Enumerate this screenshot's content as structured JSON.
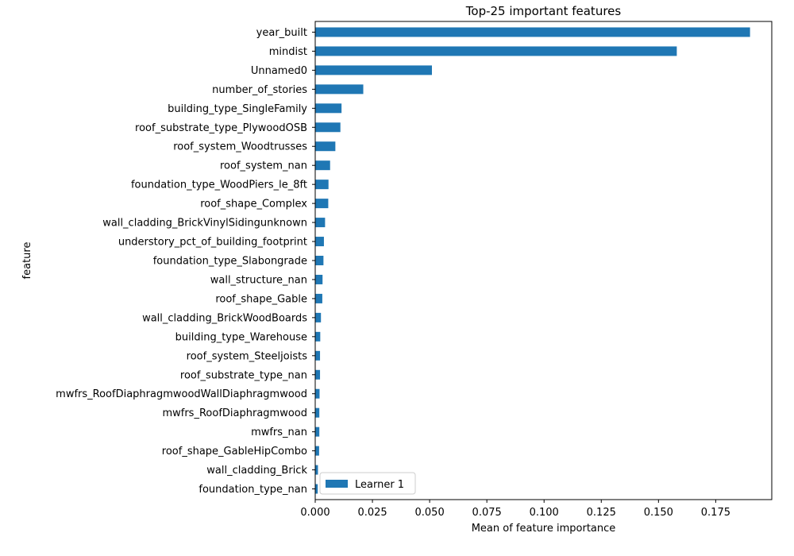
{
  "chart_data": {
    "type": "bar",
    "orientation": "horizontal",
    "title": "Top-25 important features",
    "xlabel": "Mean of feature importance",
    "ylabel": "feature",
    "xlim": [
      0,
      0.1995
    ],
    "xticks": [
      "0.000",
      "0.025",
      "0.050",
      "0.075",
      "0.100",
      "0.125",
      "0.150",
      "0.175"
    ],
    "xtick_values": [
      0,
      0.025,
      0.05,
      0.075,
      0.1,
      0.125,
      0.15,
      0.175
    ],
    "grid": false,
    "legend_position": "bottom-left",
    "bar_color": "#1f77b4",
    "categories": [
      "year_built",
      "mindist",
      "Unnamed0",
      "number_of_stories",
      "building_type_SingleFamily",
      "roof_substrate_type_PlywoodOSB",
      "roof_system_Woodtrusses",
      "roof_system_nan",
      "foundation_type_WoodPiers_le_8ft",
      "roof_shape_Complex",
      "wall_cladding_BrickVinylSidingunknown",
      "understory_pct_of_building_footprint",
      "foundation_type_Slabongrade",
      "wall_structure_nan",
      "roof_shape_Gable",
      "wall_cladding_BrickWoodBoards",
      "building_type_Warehouse",
      "roof_system_Steeljoists",
      "roof_substrate_type_nan",
      "mwfrs_RoofDiaphragmwoodWallDiaphragmwood",
      "mwfrs_RoofDiaphragmwood",
      "mwfrs_nan",
      "roof_shape_GableHipCombo",
      "wall_cladding_Brick",
      "foundation_type_nan"
    ],
    "series": [
      {
        "name": "Learner 1",
        "values": [
          0.19,
          0.158,
          0.051,
          0.021,
          0.0115,
          0.011,
          0.0088,
          0.0065,
          0.0058,
          0.0057,
          0.0043,
          0.0038,
          0.0036,
          0.0032,
          0.0031,
          0.0025,
          0.0022,
          0.0021,
          0.0021,
          0.0019,
          0.0018,
          0.0018,
          0.0017,
          0.0012,
          0.0011
        ]
      }
    ]
  }
}
